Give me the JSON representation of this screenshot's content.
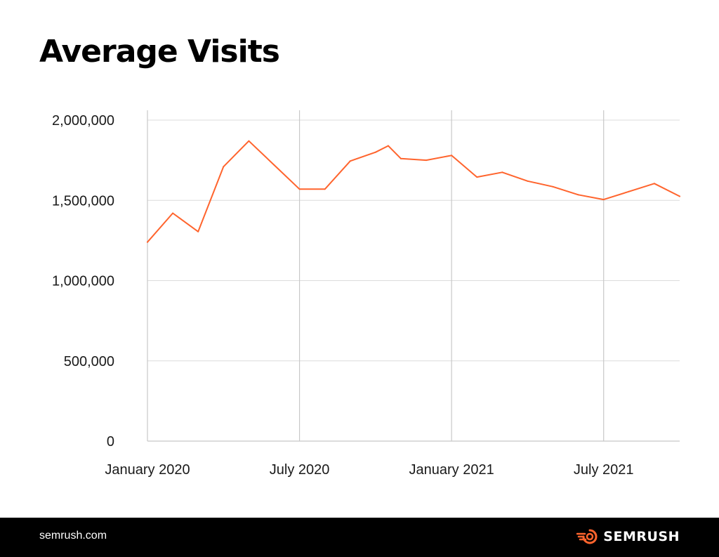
{
  "chart_data": {
    "type": "line",
    "title": "Average Visits",
    "xlabel": "",
    "ylabel": "",
    "ylim": [
      0,
      2000000
    ],
    "yticks": [
      0,
      500000,
      1000000,
      1500000,
      2000000
    ],
    "ytick_labels": [
      "0",
      "500,000",
      "1,000,000",
      "1,500,000",
      "2,000,000"
    ],
    "xlim": [
      "2020-01",
      "2021-10"
    ],
    "xticks": [
      {
        "date": "2020-01",
        "label": "January 2020"
      },
      {
        "date": "2020-07",
        "label": "July 2020"
      },
      {
        "date": "2021-01",
        "label": "January 2021"
      },
      {
        "date": "2021-07",
        "label": "July 2021"
      }
    ],
    "grid": true,
    "series": [
      {
        "name": "Average Visits",
        "color": "#ff642d",
        "points": [
          {
            "date": "2020-01",
            "value": 1240000
          },
          {
            "date": "2020-02",
            "value": 1420000
          },
          {
            "date": "2020-03",
            "value": 1305000
          },
          {
            "date": "2020-04",
            "value": 1710000
          },
          {
            "date": "2020-05",
            "value": 1870000
          },
          {
            "date": "2020-06",
            "value": 1720000
          },
          {
            "date": "2020-07",
            "value": 1570000
          },
          {
            "date": "2020-08",
            "value": 1570000
          },
          {
            "date": "2020-09",
            "value": 1745000
          },
          {
            "date": "2020-10",
            "value": 1800000
          },
          {
            "date": "2020-10-16",
            "value": 1840000
          },
          {
            "date": "2020-11",
            "value": 1760000
          },
          {
            "date": "2020-12",
            "value": 1750000
          },
          {
            "date": "2021-01",
            "value": 1780000
          },
          {
            "date": "2021-02",
            "value": 1645000
          },
          {
            "date": "2021-03",
            "value": 1675000
          },
          {
            "date": "2021-04",
            "value": 1620000
          },
          {
            "date": "2021-05",
            "value": 1585000
          },
          {
            "date": "2021-06",
            "value": 1535000
          },
          {
            "date": "2021-07",
            "value": 1505000
          },
          {
            "date": "2021-08",
            "value": 1555000
          },
          {
            "date": "2021-09",
            "value": 1605000
          },
          {
            "date": "2021-10",
            "value": 1525000
          }
        ]
      }
    ]
  },
  "footer": {
    "site": "semrush.com",
    "brand": "SEMRUSH",
    "brand_icon": "semrush-logo-icon",
    "brand_color": "#ff642d"
  },
  "colors": {
    "line": "#ff642d",
    "grid": "#dcdcdc",
    "axis": "#c8c8c8",
    "footer_bg": "#000000"
  }
}
